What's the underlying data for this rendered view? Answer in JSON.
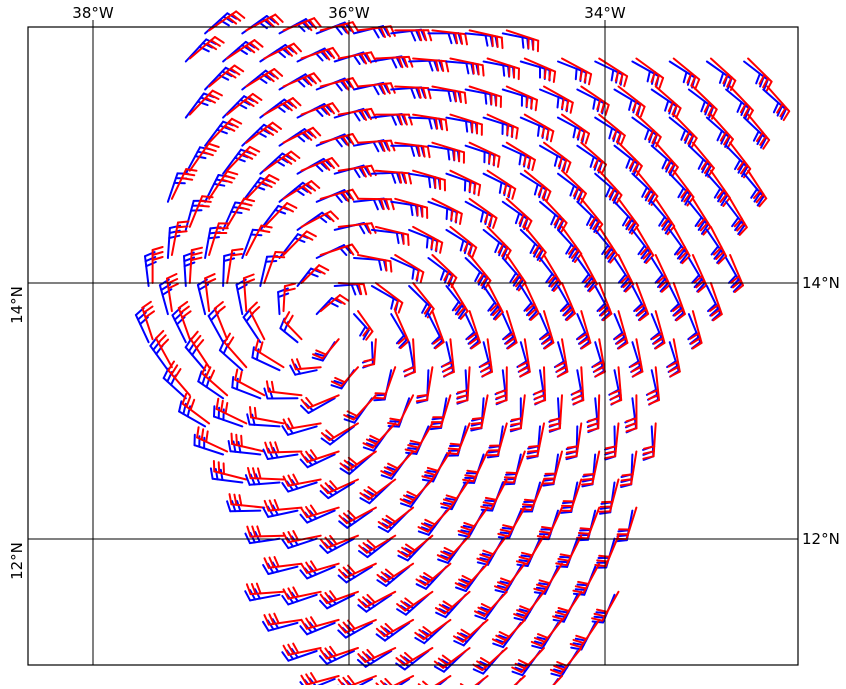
{
  "map": {
    "longitude_labels": [
      "38°W",
      "36°W",
      "34°W"
    ],
    "latitude_labels": [
      "14°N",
      "12°N"
    ],
    "colors": {
      "frame": "#000000",
      "series_a": "#ff0000",
      "series_b": "#0000ff"
    },
    "extent": {
      "lon_west": -38.5,
      "lon_east": -32.5,
      "lat_south": 11.0,
      "lat_north": 16.0
    },
    "wind_field": {
      "type": "cyclonic_vortex",
      "symbol": "wind-barb",
      "center_lon": -36.2,
      "center_lat": 13.65,
      "lon_spacing_deg": 0.2,
      "lat_spacing_deg": 0.1
    }
  }
}
